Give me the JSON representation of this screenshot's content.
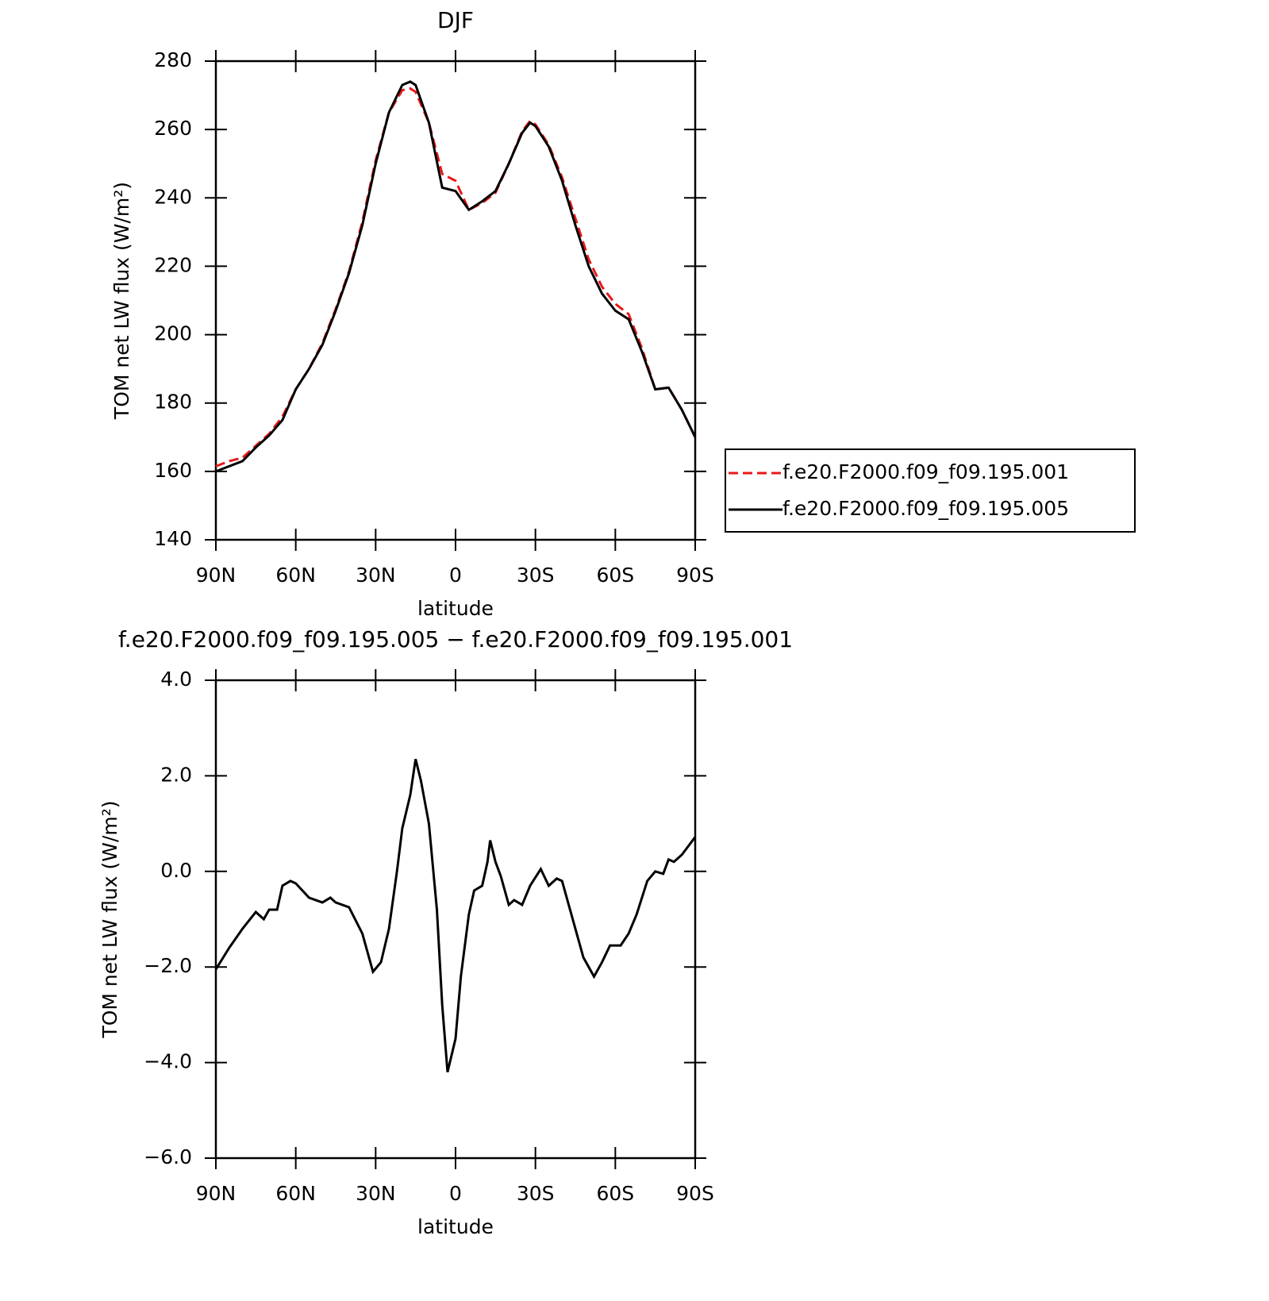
{
  "chart_data": [
    {
      "type": "line",
      "title": "DJF",
      "xlabel": "latitude",
      "ylabel": "TOM net LW flux (W/m²)",
      "x": [
        90,
        85,
        80,
        75,
        70,
        65,
        60,
        55,
        50,
        45,
        40,
        35,
        30,
        25,
        20,
        17,
        15,
        10,
        5,
        0,
        -5,
        -10,
        -15,
        -20,
        -25,
        -28,
        -30,
        -35,
        -40,
        -45,
        -50,
        -55,
        -60,
        -65,
        -70,
        -75,
        -80,
        -85,
        -90
      ],
      "series": [
        {
          "name": "f.e20.F2000.f09_f09.195.001",
          "color": "#e8191a",
          "dashed": true,
          "values": [
            161.5,
            163,
            164,
            167.5,
            171,
            176,
            184,
            190,
            197.5,
            207.5,
            218.5,
            233,
            251,
            265,
            271.5,
            272,
            271,
            262,
            247,
            245,
            236.5,
            238.5,
            241.5,
            250,
            259.5,
            262.5,
            261.5,
            255.5,
            246,
            234,
            222,
            214,
            209,
            206,
            196,
            184,
            184.5,
            178,
            170
          ]
        },
        {
          "name": "f.e20.F2000.f09_f09.195.005",
          "color": "#000000",
          "dashed": false,
          "values": [
            160,
            161.5,
            163,
            167,
            170.5,
            175,
            184,
            190,
            197,
            207,
            218,
            232,
            250,
            265,
            273,
            274,
            273,
            262,
            243,
            242,
            236.5,
            239,
            242,
            250,
            259,
            262,
            261,
            255,
            245,
            232,
            220,
            212,
            207,
            204.5,
            195,
            184,
            184.5,
            178,
            170
          ]
        }
      ],
      "xlim": [
        90,
        -90
      ],
      "xticks": [
        {
          "value": 90,
          "label": "90N"
        },
        {
          "value": 60,
          "label": "60N"
        },
        {
          "value": 30,
          "label": "30N"
        },
        0,
        {
          "value": -30,
          "label": "30S"
        },
        {
          "value": -60,
          "label": "60S"
        },
        {
          "value": -90,
          "label": "90S"
        }
      ],
      "ylim": [
        140,
        280
      ],
      "yticks": [
        140,
        160,
        180,
        200,
        220,
        240,
        260,
        280
      ],
      "legend": "right"
    },
    {
      "type": "line",
      "title": "f.e20.F2000.f09_f09.195.005 − f.e20.F2000.f09_f09.195.001",
      "xlabel": "latitude",
      "ylabel": "TOM net LW flux (W/m²)",
      "x": [
        90,
        85,
        80,
        75,
        72,
        70,
        67,
        65,
        62,
        60,
        55,
        50,
        47,
        45,
        40,
        35,
        31,
        28,
        25,
        22,
        20,
        17,
        15,
        13,
        10,
        7,
        5,
        3,
        0,
        -2,
        -5,
        -7,
        -10,
        -12,
        -13,
        -15,
        -17,
        -20,
        -22,
        -25,
        -28,
        -32,
        -35,
        -38,
        -40,
        -42,
        -45,
        -48,
        -52,
        -55,
        -58,
        -62,
        -65,
        -68,
        -72,
        -75,
        -78,
        -80,
        -82,
        -85,
        -90
      ],
      "series": [
        {
          "name": "f.e20.F2000.f09_f09.195.005 − f.e20.F2000.f09_f09.195.001",
          "color": "#000000",
          "dashed": false,
          "values": [
            -2.05,
            -1.6,
            -1.2,
            -0.85,
            -1.0,
            -0.8,
            -0.8,
            -0.3,
            -0.2,
            -0.25,
            -0.55,
            -0.65,
            -0.55,
            -0.65,
            -0.75,
            -1.3,
            -2.1,
            -1.9,
            -1.2,
            0.0,
            0.9,
            1.6,
            2.35,
            1.9,
            1.0,
            -0.8,
            -2.8,
            -4.2,
            -3.5,
            -2.2,
            -0.9,
            -0.4,
            -0.3,
            0.2,
            0.65,
            0.2,
            -0.1,
            -0.7,
            -0.6,
            -0.7,
            -0.3,
            0.05,
            -0.3,
            -0.15,
            -0.2,
            -0.6,
            -1.2,
            -1.8,
            -2.2,
            -1.9,
            -1.55,
            -1.55,
            -1.3,
            -0.9,
            -0.2,
            0.0,
            -0.05,
            0.25,
            0.2,
            0.35,
            0.72
          ]
        }
      ],
      "xlim": [
        90,
        -90
      ],
      "xticks": [
        {
          "value": 90,
          "label": "90N"
        },
        {
          "value": 60,
          "label": "60N"
        },
        {
          "value": 30,
          "label": "30N"
        },
        0,
        {
          "value": -30,
          "label": "30S"
        },
        {
          "value": -60,
          "label": "60S"
        },
        {
          "value": -90,
          "label": "90S"
        }
      ],
      "ylim": [
        -6,
        4
      ],
      "yticks": [
        {
          "value": -6,
          "label": "−6.0"
        },
        {
          "value": -4,
          "label": "−4.0"
        },
        {
          "value": -2,
          "label": "−2.0"
        },
        {
          "value": 0,
          "label": "0.0"
        },
        {
          "value": 2,
          "label": "2.0"
        },
        {
          "value": 4,
          "label": "4.0"
        }
      ]
    }
  ]
}
